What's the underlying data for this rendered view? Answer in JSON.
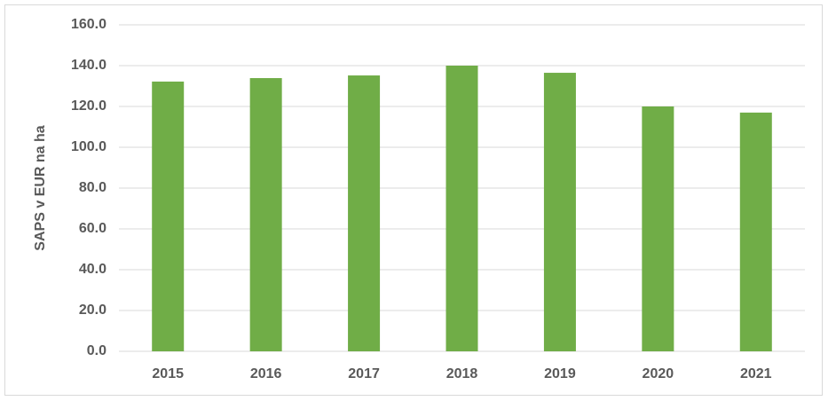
{
  "chart_data": {
    "type": "bar",
    "y_label": "SAPS v EUR na ha",
    "categories": [
      "2015",
      "2016",
      "2017",
      "2018",
      "2019",
      "2020",
      "2021"
    ],
    "values": [
      132.2,
      133.9,
      135.2,
      140.0,
      136.5,
      120.0,
      117.0
    ],
    "color": "#70ad47",
    "ylim": [
      0,
      160
    ],
    "yticks": [
      {
        "value": 0,
        "label": "0.0"
      },
      {
        "value": 20,
        "label": "20.0"
      },
      {
        "value": 40,
        "label": "40.0"
      },
      {
        "value": 60,
        "label": "60.0"
      },
      {
        "value": 80,
        "label": "80.0"
      },
      {
        "value": 100,
        "label": "100.0"
      },
      {
        "value": 120,
        "label": "120.0"
      },
      {
        "value": 140,
        "label": "140.0"
      },
      {
        "value": 160,
        "label": "160.0"
      }
    ],
    "grid": true
  }
}
